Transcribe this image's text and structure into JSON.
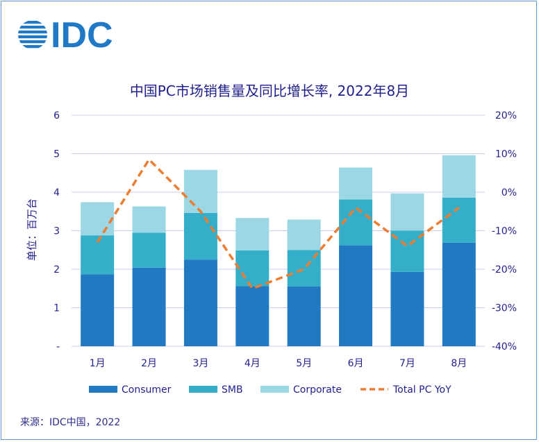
{
  "logo": {
    "text": "IDC",
    "color": "#1f79c7"
  },
  "source": "来源：IDC中国，2022",
  "chart_data": {
    "type": "bar",
    "stacked": true,
    "title": "中国PC市场销售量及同比增长率, 2022年8月",
    "ylabel": "单位：百万台",
    "categories": [
      "1月",
      "2月",
      "3月",
      "4月",
      "5月",
      "6月",
      "7月",
      "8月"
    ],
    "ylim": [
      0,
      6
    ],
    "y_ticks": [
      "-",
      "1",
      "2",
      "3",
      "4",
      "5",
      "6"
    ],
    "y2lim": [
      -40,
      20
    ],
    "y2_ticks": [
      "-40%",
      "-30%",
      "-20%",
      "-10%",
      "0%",
      "10%",
      "20%"
    ],
    "grid": true,
    "legend_position": "bottom",
    "series": [
      {
        "name": "Consumer",
        "color": "#2179c1",
        "values": [
          1.87,
          2.04,
          2.25,
          1.56,
          1.55,
          2.62,
          1.93,
          2.69
        ]
      },
      {
        "name": "SMB",
        "color": "#35aec9",
        "values": [
          1.01,
          0.91,
          1.21,
          0.93,
          0.95,
          1.19,
          1.07,
          1.17
        ]
      },
      {
        "name": "Corporate",
        "color": "#9bd7e4",
        "values": [
          0.86,
          0.68,
          1.12,
          0.84,
          0.79,
          0.83,
          0.97,
          1.1
        ]
      }
    ],
    "line_series": {
      "name": "Total PC YoY",
      "color": "#ed7d31",
      "axis": "right",
      "values": [
        -13,
        8.5,
        -5,
        -25,
        -20,
        -4,
        -14,
        -4
      ]
    }
  }
}
